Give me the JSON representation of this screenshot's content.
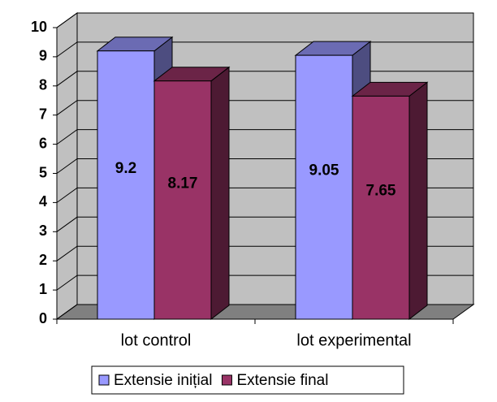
{
  "chart_data": {
    "type": "bar",
    "categories": [
      "lot control",
      "lot experimental"
    ],
    "series": [
      {
        "name": "Extensie inițial",
        "color": "#9999ff",
        "values": [
          9.2,
          9.05
        ]
      },
      {
        "name": "Extensie final",
        "color": "#993366",
        "values": [
          8.17,
          7.65
        ]
      }
    ],
    "ylim": [
      0,
      10
    ],
    "yticks": [
      0,
      1,
      2,
      3,
      4,
      5,
      6,
      7,
      8,
      9,
      10
    ],
    "grid": true,
    "legend": "bottom"
  }
}
